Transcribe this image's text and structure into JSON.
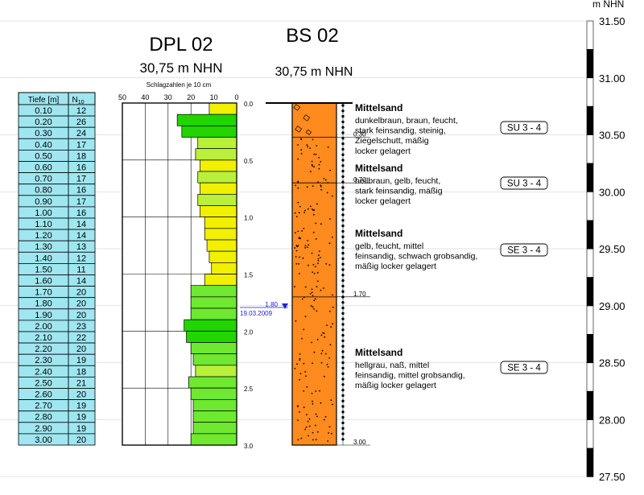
{
  "dpl": {
    "title": "DPL 02",
    "elevation": "30,75 m NHN",
    "subtitle": "Schlagzahlen je 10 cm",
    "table": {
      "header_depth": "Tiefe [m]",
      "header_n": "N",
      "header_n_sub": "10",
      "rows": [
        {
          "depth": "0.10",
          "n": 12
        },
        {
          "depth": "0.20",
          "n": 26
        },
        {
          "depth": "0.30",
          "n": 24
        },
        {
          "depth": "0.40",
          "n": 17
        },
        {
          "depth": "0.50",
          "n": 18
        },
        {
          "depth": "0.60",
          "n": 16
        },
        {
          "depth": "0.70",
          "n": 17
        },
        {
          "depth": "0.80",
          "n": 16
        },
        {
          "depth": "0.90",
          "n": 17
        },
        {
          "depth": "1.00",
          "n": 16
        },
        {
          "depth": "1.10",
          "n": 14
        },
        {
          "depth": "1.20",
          "n": 14
        },
        {
          "depth": "1.30",
          "n": 13
        },
        {
          "depth": "1.40",
          "n": 12
        },
        {
          "depth": "1.50",
          "n": 11
        },
        {
          "depth": "1.60",
          "n": 14
        },
        {
          "depth": "1.70",
          "n": 20
        },
        {
          "depth": "1.80",
          "n": 20
        },
        {
          "depth": "1.90",
          "n": 20
        },
        {
          "depth": "2.00",
          "n": 23
        },
        {
          "depth": "2.10",
          "n": 22
        },
        {
          "depth": "2.20",
          "n": 20
        },
        {
          "depth": "2.30",
          "n": 19
        },
        {
          "depth": "2.40",
          "n": 18
        },
        {
          "depth": "2.50",
          "n": 21
        },
        {
          "depth": "2.60",
          "n": 20
        },
        {
          "depth": "2.70",
          "n": 19
        },
        {
          "depth": "2.80",
          "n": 19
        },
        {
          "depth": "2.90",
          "n": 19
        },
        {
          "depth": "3.00",
          "n": 20
        }
      ]
    },
    "x_ticks": [
      "50",
      "40",
      "30",
      "20",
      "10",
      "0"
    ],
    "depth_ticks": [
      "0.0",
      "0.5",
      "1.0",
      "1.5",
      "2.0",
      "2.5",
      "3.0"
    ],
    "groundwater": {
      "depth": "1.80",
      "date": "19.03.2009"
    },
    "colors": {
      "yellow": "#f0f000",
      "lime": "#b8f03a",
      "green": "#22d400",
      "light_green": "#6ee830"
    }
  },
  "bs": {
    "title": "BS 02",
    "elevation": "30,75 m NHN",
    "fill_color": "#ff8a1e",
    "layers": [
      {
        "title": "Mittelsand",
        "lines": [
          "dunkelbraun, braun, feucht,",
          "stark feinsandig, steinig,",
          "Ziegelschutt, mäßig",
          "locker gelagert"
        ],
        "bottom": "0.30",
        "class": "SU 3 - 4"
      },
      {
        "title": "Mittelsand",
        "lines": [
          "hellbraun, gelb, feucht,",
          "stark feinsandig, mäßig",
          "locker gelagert"
        ],
        "bottom": "0.70",
        "class": "SU 3 - 4"
      },
      {
        "title": "Mittelsand",
        "lines": [
          "gelb, feucht, mittel",
          "feinsandig, schwach grobsandig,",
          "mäßig locker gelagert"
        ],
        "bottom": "1.70",
        "class": "SE 3 - 4"
      },
      {
        "title": "Mittelsand",
        "lines": [
          "hellgrau, naß, mittel",
          "feinsandig, mittel grobsandig,",
          "mäßig locker gelagert"
        ],
        "bottom": "3.00",
        "class": "SE 3 - 4"
      }
    ]
  },
  "scale": {
    "unit": "m NHN",
    "labels": [
      "31.50",
      "31.00",
      "30.50",
      "30.00",
      "29.50",
      "29.00",
      "28.50",
      "28.00",
      "27.50"
    ]
  }
}
